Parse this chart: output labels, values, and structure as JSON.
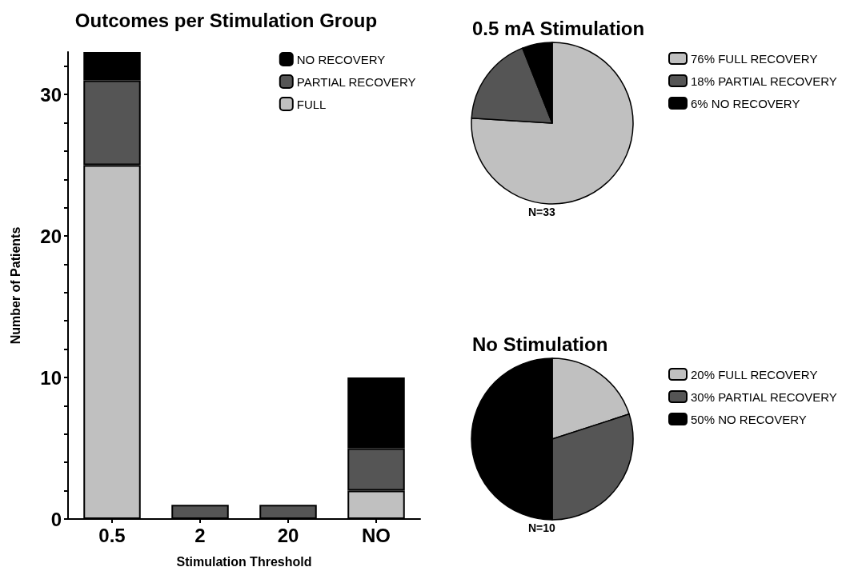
{
  "chart_data": [
    {
      "type": "bar",
      "title": "Outcomes per Stimulation Group",
      "xlabel": "Stimulation Threshold",
      "ylabel": "Number of Patients",
      "categories": [
        "0.5",
        "2",
        "20",
        "NO"
      ],
      "stacked": true,
      "series": [
        {
          "name": "FULL",
          "color": "#c0c0c0",
          "values": [
            25,
            0,
            0,
            2
          ]
        },
        {
          "name": "PARTIAL RECOVERY",
          "color": "#555555",
          "values": [
            6,
            1,
            1,
            3
          ]
        },
        {
          "name": "NO RECOVERY",
          "color": "#000000",
          "values": [
            2,
            0,
            0,
            5
          ]
        }
      ],
      "ylim": [
        0,
        33
      ],
      "yticks": [
        0,
        {
          "value": 2,
          "label": null
        },
        {
          "value": 4,
          "label": null
        },
        {
          "value": 6,
          "label": null
        },
        {
          "value": 8,
          "label": null
        },
        10,
        {
          "value": 12,
          "label": null
        },
        {
          "value": 14,
          "label": null
        },
        {
          "value": 16,
          "label": null
        },
        {
          "value": 18,
          "label": null
        },
        20,
        {
          "value": 22,
          "label": null
        },
        {
          "value": 24,
          "label": null
        },
        {
          "value": 26,
          "label": null
        },
        {
          "value": 28,
          "label": null
        },
        30,
        {
          "value": 32,
          "label": null
        }
      ],
      "grid": false,
      "legend": "top right"
    },
    {
      "type": "pie",
      "title": "0.5 mA Stimulation",
      "categories": [
        "FULL RECOVERY",
        "PARTIAL RECOVERY",
        "NO RECOVERY"
      ],
      "values": [
        76,
        18,
        6
      ],
      "value_labels": [
        "76%",
        "18%",
        "6%"
      ],
      "colors": [
        "#c0c0c0",
        "#555555",
        "#000000"
      ],
      "annotations": [
        "N=33"
      ],
      "legend": "right"
    },
    {
      "type": "pie",
      "title": "No Stimulation",
      "categories": [
        "FULL RECOVERY",
        "PARTIAL RECOVERY",
        "NO RECOVERY"
      ],
      "values": [
        20,
        30,
        50
      ],
      "value_labels": [
        "20%",
        "30%",
        "50%"
      ],
      "colors": [
        "#c0c0c0",
        "#555555",
        "#000000"
      ],
      "annotations": [
        "N=10"
      ],
      "legend": "right"
    }
  ]
}
